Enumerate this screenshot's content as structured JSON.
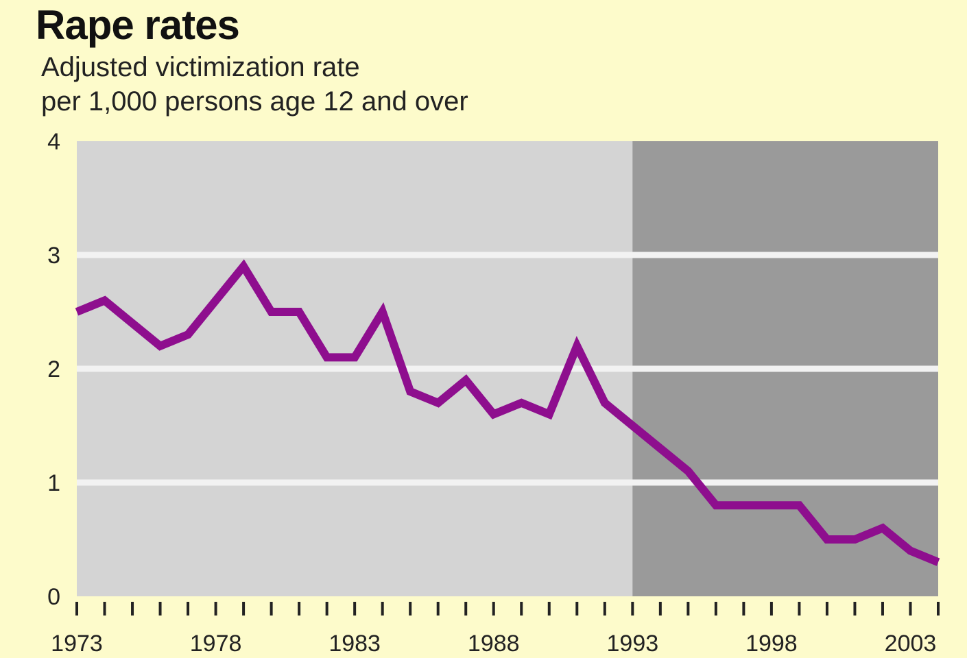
{
  "chart_data": {
    "type": "line",
    "title": "Rape rates",
    "subtitle_lines": [
      "Adjusted victimization rate",
      "per 1,000 persons age 12 and over"
    ],
    "xlabel": "",
    "ylabel": "",
    "xlim": [
      1973,
      2004
    ],
    "ylim": [
      0,
      4
    ],
    "y_ticks": [
      0,
      1,
      2,
      3,
      4
    ],
    "y_tick_labels": [
      "0",
      "1",
      "2",
      "3",
      "4"
    ],
    "x_tick_labels": [
      1973,
      1978,
      1983,
      1988,
      1993,
      1998,
      2003
    ],
    "grid": true,
    "shaded_region": {
      "from": 1993,
      "to": 2004,
      "color": "#9a9a9a"
    },
    "colors": {
      "background": "#fdfbcb",
      "plot_area": "#d4d4d4",
      "gridline": "#f2f2f2",
      "line": "#8e0e8e"
    },
    "series": [
      {
        "x": [
          1973,
          1974,
          1975,
          1976,
          1977,
          1978,
          1979,
          1980,
          1981,
          1982,
          1983,
          1984,
          1985,
          1986,
          1987,
          1988,
          1989,
          1990,
          1991,
          1992,
          1993,
          1994,
          1995,
          1996,
          1997,
          1998,
          1999,
          2000,
          2001,
          2002,
          2003,
          2004
        ],
        "values": [
          2.5,
          2.6,
          2.4,
          2.2,
          2.3,
          2.6,
          2.9,
          2.5,
          2.5,
          2.1,
          2.1,
          2.5,
          1.8,
          1.7,
          1.9,
          1.6,
          1.7,
          1.6,
          2.2,
          1.7,
          1.5,
          1.3,
          1.1,
          0.8,
          0.8,
          0.8,
          0.8,
          0.5,
          0.5,
          0.6,
          0.4,
          0.3
        ]
      }
    ]
  }
}
